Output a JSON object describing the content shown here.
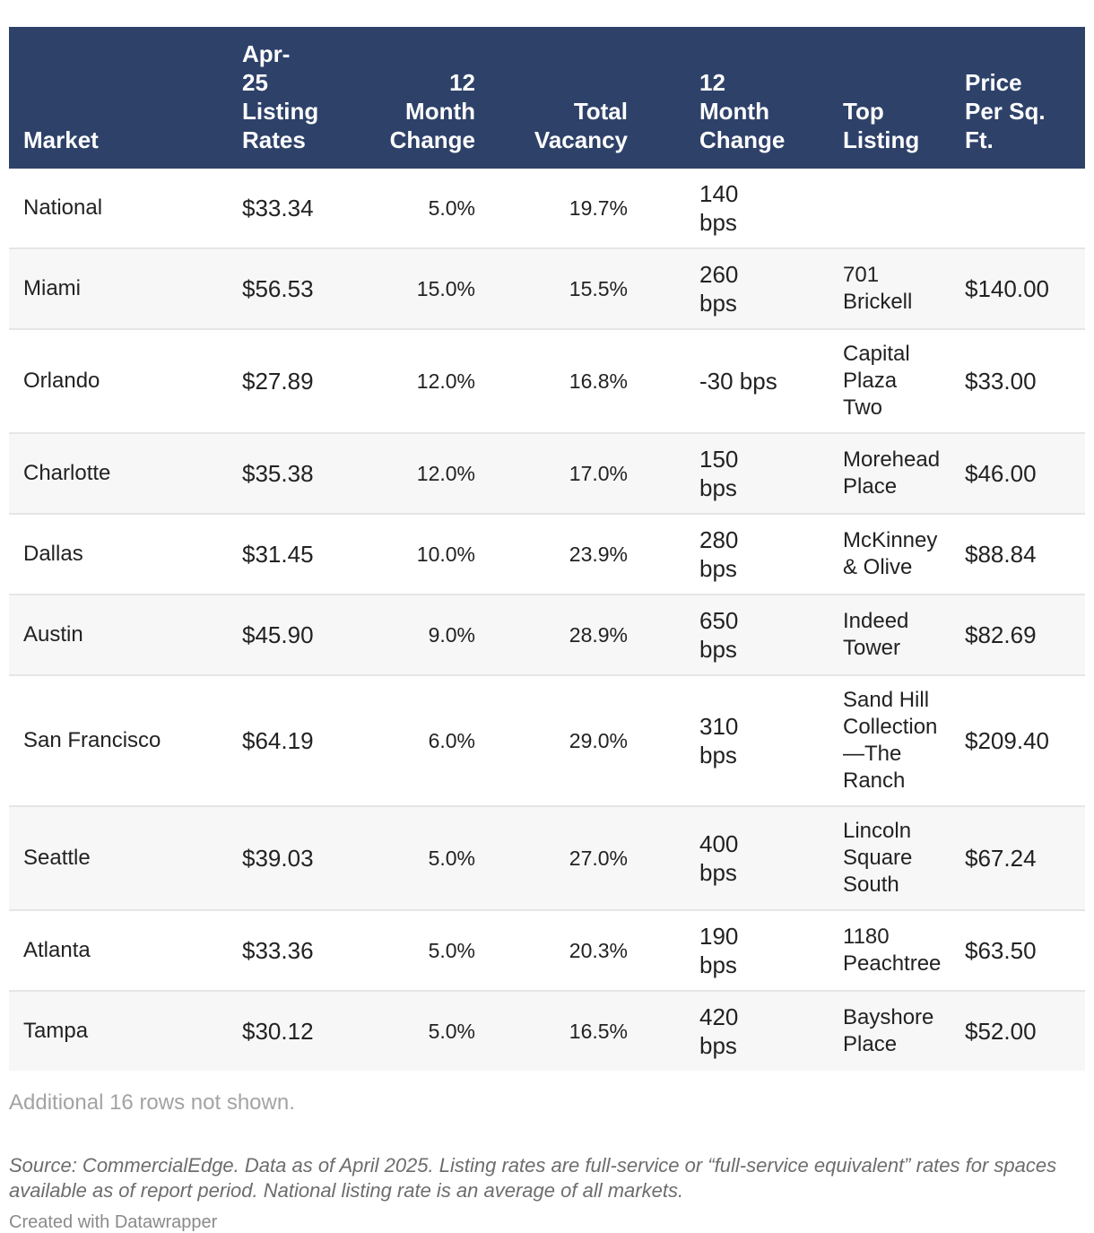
{
  "chart_data": {
    "type": "table",
    "columns": [
      "Market",
      "Apr-25 Listing Rates",
      "12 Month Change",
      "Total Vacancy",
      "12 Month Change",
      "Top Listing",
      "Price Per Sq. Ft."
    ],
    "header_lines": [
      [
        "Market"
      ],
      [
        "Apr-",
        "25",
        "Listing",
        "Rates"
      ],
      [
        "12",
        "Month",
        "Change"
      ],
      [
        "Total",
        "Vacancy"
      ],
      [
        "12",
        "Month",
        "Change"
      ],
      [
        "Top",
        "Listing"
      ],
      [
        "Price",
        "Per Sq.",
        "Ft."
      ]
    ],
    "rows": [
      {
        "market": "National",
        "rate": "$33.34",
        "rate_change": "5.0%",
        "vacancy": "19.7%",
        "vacancy_change": [
          "140",
          "bps"
        ],
        "top_listing": [],
        "price": ""
      },
      {
        "market": "Miami",
        "rate": "$56.53",
        "rate_change": "15.0%",
        "vacancy": "15.5%",
        "vacancy_change": [
          "260",
          "bps"
        ],
        "top_listing": [
          "701",
          "Brickell"
        ],
        "price": "$140.00"
      },
      {
        "market": "Orlando",
        "rate": "$27.89",
        "rate_change": "12.0%",
        "vacancy": "16.8%",
        "vacancy_change": [
          "-30 bps"
        ],
        "top_listing": [
          "Capital",
          "Plaza Two"
        ],
        "price": "$33.00"
      },
      {
        "market": "Charlotte",
        "rate": "$35.38",
        "rate_change": "12.0%",
        "vacancy": "17.0%",
        "vacancy_change": [
          "150",
          "bps"
        ],
        "top_listing": [
          "Morehead",
          "Place"
        ],
        "price": "$46.00"
      },
      {
        "market": "Dallas",
        "rate": "$31.45",
        "rate_change": "10.0%",
        "vacancy": "23.9%",
        "vacancy_change": [
          "280",
          "bps"
        ],
        "top_listing": [
          "McKinney",
          "& Olive"
        ],
        "price": "$88.84"
      },
      {
        "market": "Austin",
        "rate": "$45.90",
        "rate_change": "9.0%",
        "vacancy": "28.9%",
        "vacancy_change": [
          "650",
          "bps"
        ],
        "top_listing": [
          "Indeed",
          "Tower"
        ],
        "price": "$82.69"
      },
      {
        "market": "San Francisco",
        "rate": "$64.19",
        "rate_change": "6.0%",
        "vacancy": "29.0%",
        "vacancy_change": [
          "310",
          "bps"
        ],
        "top_listing": [
          "Sand Hill",
          "Collection",
          "—The",
          "Ranch"
        ],
        "price": "$209.40"
      },
      {
        "market": "Seattle",
        "rate": "$39.03",
        "rate_change": "5.0%",
        "vacancy": "27.0%",
        "vacancy_change": [
          "400",
          "bps"
        ],
        "top_listing": [
          "Lincoln",
          "Square",
          "South"
        ],
        "price": "$67.24"
      },
      {
        "market": "Atlanta",
        "rate": "$33.36",
        "rate_change": "5.0%",
        "vacancy": "20.3%",
        "vacancy_change": [
          "190",
          "bps"
        ],
        "top_listing": [
          "1180",
          "Peachtree"
        ],
        "price": "$63.50"
      },
      {
        "market": "Tampa",
        "rate": "$30.12",
        "rate_change": "5.0%",
        "vacancy": "16.5%",
        "vacancy_change": [
          "420",
          "bps"
        ],
        "top_listing": [
          "Bayshore",
          "Place"
        ],
        "price": "$52.00"
      }
    ],
    "note": "Additional 16 rows not shown.",
    "source": "Source: CommercialEdge. Data as of April 2025. Listing rates are full-service or “full-service equivalent” rates for spaces available as of report period. National listing rate is an average of all markets.",
    "credit": "Created with Datawrapper"
  },
  "colors": {
    "header_bg": "#2e4169",
    "header_text": "#ffffff",
    "row_alt_bg": "#f7f7f7",
    "row_border": "#e6e6e6",
    "note_text": "#a3a3a3",
    "source_text": "#6d6d6d"
  }
}
